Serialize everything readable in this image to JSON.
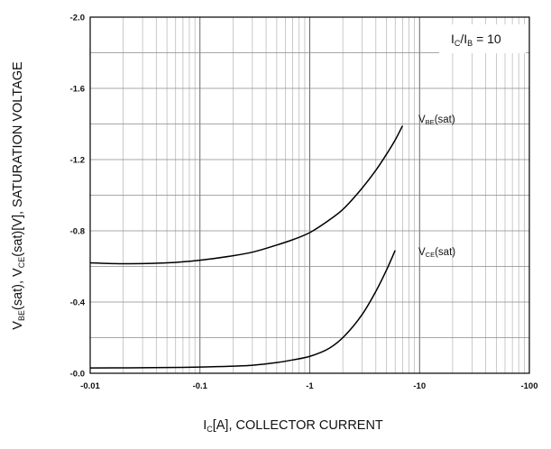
{
  "chart_data": {
    "type": "line",
    "x_scale": "log",
    "xlim": [
      -0.01,
      -100
    ],
    "ylim": [
      0.0,
      -2.0
    ],
    "grid": true,
    "x_ticks": [
      "-0.01",
      "-0.1",
      "-1",
      "-10",
      "-100"
    ],
    "y_ticks": [
      "-0.0",
      "-0.4",
      "-0.8",
      "-1.2",
      "-1.6",
      "-2.0"
    ],
    "xlabel": {
      "main1": "I",
      "sub": "C",
      "main2": "[A], COLLECTOR CURRENT"
    },
    "ylabel": {
      "p1": "V",
      "s1": "BE",
      "p2": "(sat), V",
      "s2": "CE",
      "p3": "(sat)[V], SATURATION VOLTAGE"
    },
    "condition": {
      "p1": "I",
      "s1": "C",
      "p2": "/I",
      "s2": "B",
      "p3": " = 10"
    },
    "series": [
      {
        "label": {
          "main": "V",
          "sub": "BE",
          "suffix": "(sat)"
        },
        "x": [
          -0.01,
          -0.02,
          -0.05,
          -0.1,
          -0.2,
          -0.3,
          -0.5,
          -0.7,
          -1,
          -1.5,
          -2,
          -3,
          -4,
          -5,
          -6,
          -7
        ],
        "y": [
          -0.62,
          -0.615,
          -0.62,
          -0.635,
          -0.66,
          -0.68,
          -0.72,
          -0.75,
          -0.79,
          -0.86,
          -0.92,
          -1.04,
          -1.14,
          -1.23,
          -1.31,
          -1.39
        ]
      },
      {
        "label": {
          "main": "V",
          "sub": "CE",
          "suffix": "(sat)"
        },
        "x": [
          -0.01,
          -0.05,
          -0.1,
          -0.2,
          -0.3,
          -0.5,
          -0.7,
          -1,
          -1.5,
          -2,
          -3,
          -4,
          -5,
          -6
        ],
        "y": [
          -0.03,
          -0.032,
          -0.035,
          -0.04,
          -0.045,
          -0.06,
          -0.075,
          -0.095,
          -0.14,
          -0.2,
          -0.33,
          -0.46,
          -0.58,
          -0.69
        ]
      }
    ]
  }
}
